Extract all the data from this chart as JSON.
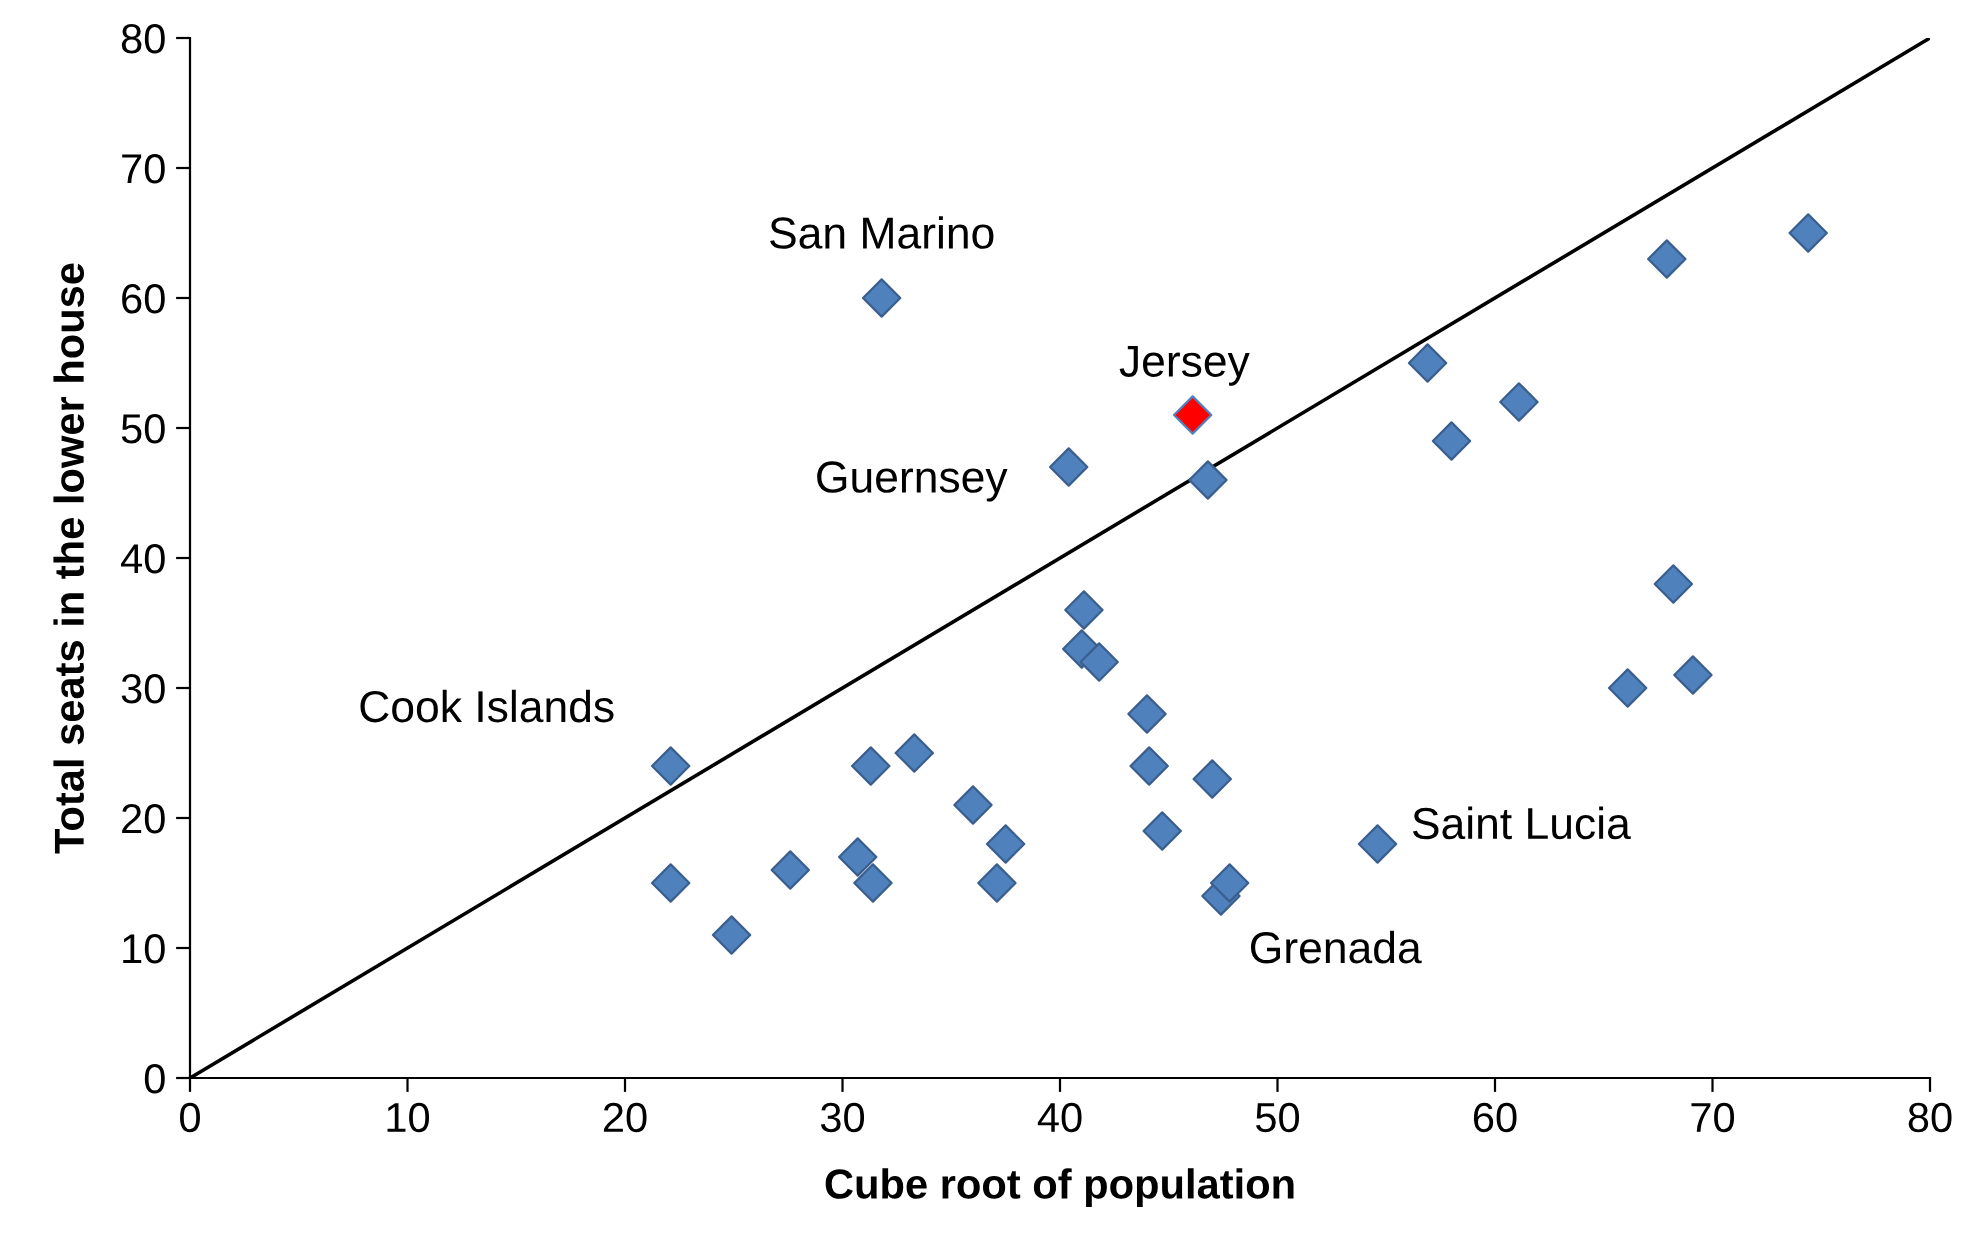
{
  "chart_data": {
    "type": "scatter",
    "xlabel": "Cube root of population",
    "ylabel": "Total seats in the lower house",
    "xlim": [
      0,
      80
    ],
    "ylim": [
      0,
      80
    ],
    "xticks": [
      0,
      10,
      20,
      30,
      40,
      50,
      60,
      70,
      80
    ],
    "yticks": [
      0,
      10,
      20,
      30,
      40,
      50,
      60,
      70,
      80
    ],
    "grid": false,
    "legend": false,
    "marker": "diamond",
    "series": [
      {
        "color": "#4f81bd",
        "x": [
          22.1,
          22.1,
          24.9,
          27.6,
          30.7,
          31.3,
          31.4,
          31.8,
          33.3,
          36.0,
          37.1,
          37.5,
          40.4,
          41.0,
          41.1,
          41.8,
          44.0,
          44.1,
          44.7,
          46.8,
          47.0,
          47.4,
          47.8,
          54.6,
          56.9,
          58.0,
          61.1,
          66.1,
          67.9,
          68.2,
          69.1,
          74.4
        ],
        "values": [
          15,
          24,
          11,
          16,
          17,
          24,
          15,
          60,
          25,
          21,
          15,
          18,
          47,
          33,
          36,
          32,
          28,
          24,
          19,
          46,
          23,
          14,
          15,
          18,
          55,
          49,
          52,
          30,
          63,
          38,
          31,
          65
        ]
      },
      {
        "color": "#ff0000",
        "x": [
          46.1
        ],
        "values": [
          51
        ]
      },
      {
        "type": "line",
        "color": "#000000",
        "x": [
          0,
          80
        ],
        "values": [
          0,
          80
        ],
        "marker": "none",
        "line_style": "solid"
      }
    ],
    "annotations": [
      {
        "text": "San Marino",
        "x": 31.8,
        "y": 60
      },
      {
        "text": "Jersey",
        "x": 46.1,
        "y": 51
      },
      {
        "text": "Guernsey",
        "x": 40.4,
        "y": 47
      },
      {
        "text": "Cook Islands",
        "x": 22.1,
        "y": 24
      },
      {
        "text": "Saint Lucia",
        "x": 54.6,
        "y": 18
      },
      {
        "text": "Grenada",
        "x": 47.4,
        "y": 14
      }
    ]
  }
}
